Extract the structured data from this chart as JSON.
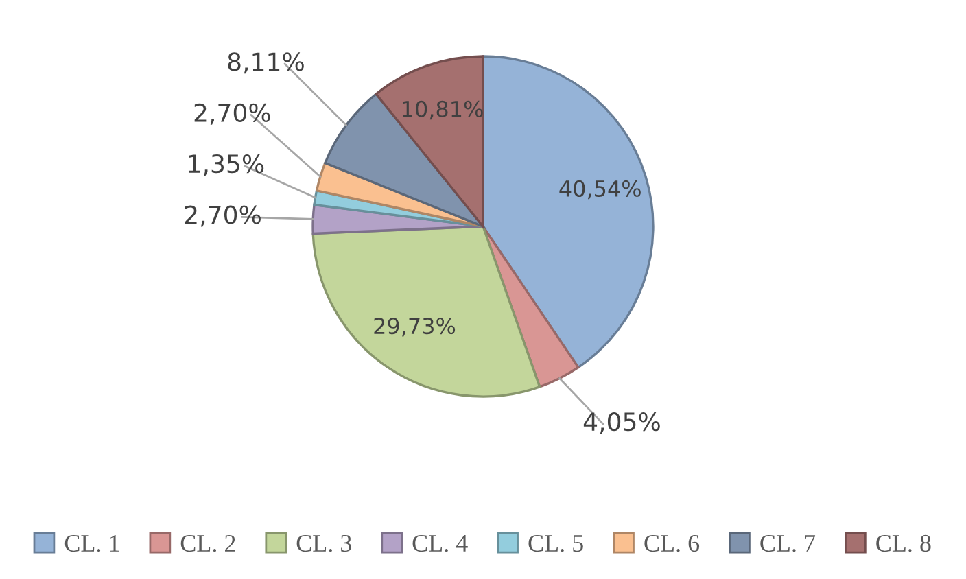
{
  "chart_data": {
    "type": "pie",
    "categories": [
      "CL. 1",
      "CL. 2",
      "CL. 3",
      "CL. 4",
      "CL. 5",
      "CL. 6",
      "CL. 7",
      "CL. 8"
    ],
    "values": [
      40.54,
      4.05,
      29.73,
      2.7,
      1.35,
      2.7,
      8.11,
      10.81
    ],
    "value_labels": [
      "40,54%",
      "4,05%",
      "29,73%",
      "2,70%",
      "1,35%",
      "2,70%",
      "8,11%",
      "10,81%"
    ],
    "colors": [
      "#95b3d7",
      "#d99694",
      "#c3d69b",
      "#b3a2c7",
      "#93cddd",
      "#fac090",
      "#8093ad",
      "#a5706f"
    ],
    "legend": "bottom"
  }
}
